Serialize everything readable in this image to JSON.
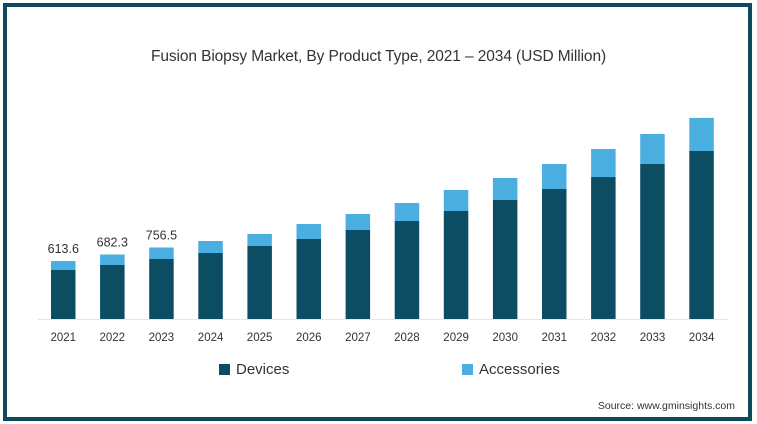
{
  "chart_data": {
    "type": "bar",
    "stacked": true,
    "title": "Fusion Biopsy Market, By Product Type, 2021 – 2034 (USD Million)",
    "xlabel": "",
    "ylabel": "",
    "categories": [
      "2021",
      "2022",
      "2023",
      "2024",
      "2025",
      "2026",
      "2027",
      "2028",
      "2029",
      "2030",
      "2031",
      "2032",
      "2033",
      "2034"
    ],
    "series": [
      {
        "name": "Devices",
        "color": "#0d4d63",
        "values": [
          518,
          571,
          635,
          698,
          772,
          846,
          942,
          1037,
          1143,
          1259,
          1375,
          1502,
          1640,
          1777
        ]
      },
      {
        "name": "Accessories",
        "color": "#4aaee0",
        "values": [
          95.6,
          111.3,
          121.5,
          127,
          127,
          159,
          169,
          190,
          222,
          233,
          265,
          297,
          317,
          350
        ]
      }
    ],
    "data_labels": [
      {
        "category": "2021",
        "text": "613.6"
      },
      {
        "category": "2022",
        "text": "682.3"
      },
      {
        "category": "2023",
        "text": "756.5"
      }
    ],
    "ylim": [
      0,
      2200
    ],
    "grid": false,
    "legend": {
      "position": "bottom",
      "entries": [
        "Devices",
        "Accessories"
      ]
    },
    "annotations": [
      "Source: www.gminsights.com"
    ]
  },
  "source": "Source: www.gminsights.com"
}
